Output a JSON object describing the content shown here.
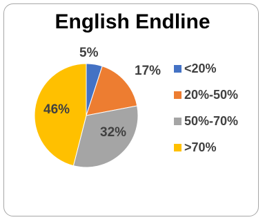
{
  "chart_data": {
    "type": "pie",
    "title": "English Endline",
    "categories": [
      "<20%",
      "20%-50%",
      "50%-70%",
      ">70%"
    ],
    "values": [
      5,
      17,
      32,
      46
    ],
    "labels": [
      "5%",
      "17%",
      "32%",
      "46%"
    ],
    "colors": [
      "#4472c4",
      "#ed7d31",
      "#a5a5a5",
      "#ffc000"
    ],
    "legend": "right"
  }
}
